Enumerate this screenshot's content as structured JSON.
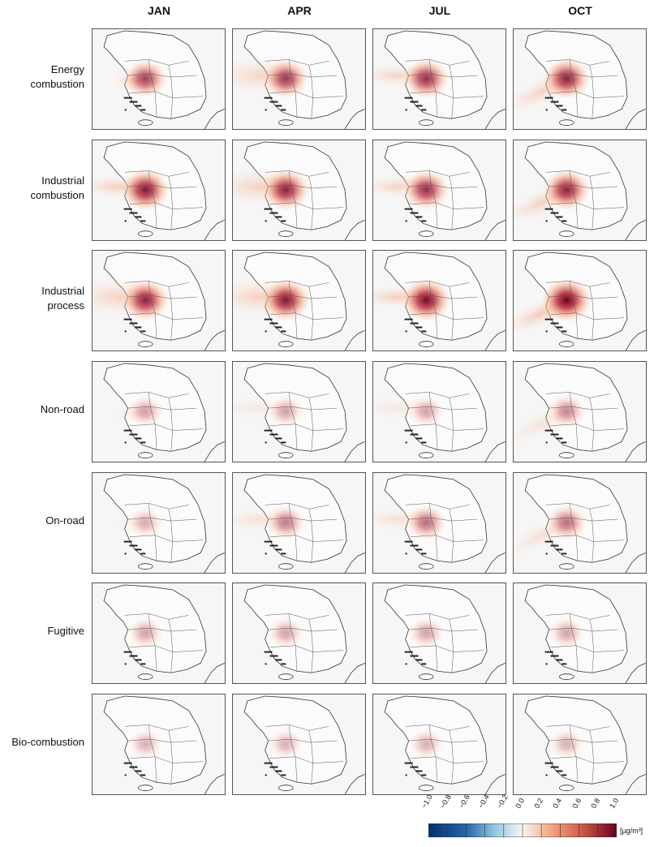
{
  "columns": [
    "JAN",
    "APR",
    "JUL",
    "OCT"
  ],
  "rows": [
    {
      "label_lines": [
        "Energy",
        "combustion"
      ],
      "intensity": [
        0.7,
        0.75,
        0.8,
        0.85
      ],
      "plume": [
        "low",
        "wide-west",
        "west",
        "southwest"
      ]
    },
    {
      "label_lines": [
        "Industrial",
        "combustion"
      ],
      "intensity": [
        0.9,
        0.85,
        0.8,
        0.85
      ],
      "plume": [
        "west",
        "wide-west",
        "west",
        "southwest"
      ]
    },
    {
      "label_lines": [
        "Industrial",
        "process"
      ],
      "intensity": [
        0.85,
        0.9,
        0.95,
        1.0
      ],
      "plume": [
        "wide-west",
        "wide-west",
        "west",
        "southwest"
      ]
    },
    {
      "label_lines": [
        "Non-road"
      ],
      "intensity": [
        0.35,
        0.35,
        0.35,
        0.45
      ],
      "plume": [
        "low",
        "west",
        "west",
        "southwest"
      ]
    },
    {
      "label_lines": [
        "On-road"
      ],
      "intensity": [
        0.3,
        0.5,
        0.55,
        0.55
      ],
      "plume": [
        "low",
        "west",
        "west",
        "southwest"
      ]
    },
    {
      "label_lines": [
        "Fugitive"
      ],
      "intensity": [
        0.35,
        0.35,
        0.35,
        0.35
      ],
      "plume": [
        "none",
        "none",
        "none",
        "none"
      ]
    },
    {
      "label_lines": [
        "Bio-combustion"
      ],
      "intensity": [
        0.3,
        0.3,
        0.3,
        0.3
      ],
      "plume": [
        "none",
        "none",
        "none",
        "none"
      ]
    }
  ],
  "colorbar": {
    "ticks": [
      "−1.0",
      "−0.8",
      "−0.6",
      "−0.4",
      "−0.2",
      "0.0",
      "0.2",
      "0.4",
      "0.6",
      "0.8",
      "1.0"
    ],
    "unit": "[µg/m³]",
    "colors": [
      "#08306b",
      "#2166ac",
      "#4393c3",
      "#92c5de",
      "#d1e5f0",
      "#f7f7f7",
      "#fddbc7",
      "#f4a582",
      "#d6604d",
      "#b2182b",
      "#67001f"
    ]
  }
}
